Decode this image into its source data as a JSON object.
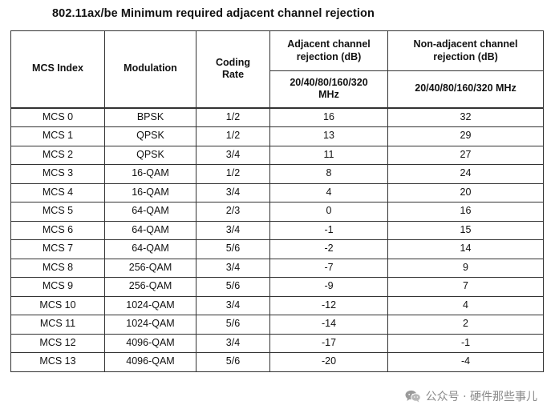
{
  "title": "802.11ax/be Minimum required adjacent channel rejection",
  "table": {
    "headers": {
      "mcs_index": "MCS Index",
      "modulation": "Modulation",
      "coding_rate_line1": "Coding",
      "coding_rate_line2": "Rate",
      "adjacent_line1": "Adjacent channel",
      "adjacent_line2": "rejection (dB)",
      "adjacent_bw_line1": "20/40/80/160/320",
      "adjacent_bw_line2": "MHz",
      "nonadjacent_line1": "Non-adjacent channel",
      "nonadjacent_line2": "rejection (dB)",
      "nonadjacent_bw": "20/40/80/160/320 MHz"
    },
    "rows": [
      [
        "MCS 0",
        "BPSK",
        "1/2",
        "16",
        "32"
      ],
      [
        "MCS 1",
        "QPSK",
        "1/2",
        "13",
        "29"
      ],
      [
        "MCS 2",
        "QPSK",
        "3/4",
        "11",
        "27"
      ],
      [
        "MCS 3",
        "16-QAM",
        "1/2",
        "8",
        "24"
      ],
      [
        "MCS 4",
        "16-QAM",
        "3/4",
        "4",
        "20"
      ],
      [
        "MCS 5",
        "64-QAM",
        "2/3",
        "0",
        "16"
      ],
      [
        "MCS 6",
        "64-QAM",
        "3/4",
        "-1",
        "15"
      ],
      [
        "MCS 7",
        "64-QAM",
        "5/6",
        "-2",
        "14"
      ],
      [
        "MCS 8",
        "256-QAM",
        "3/4",
        "-7",
        "9"
      ],
      [
        "MCS 9",
        "256-QAM",
        "5/6",
        "-9",
        "7"
      ],
      [
        "MCS 10",
        "1024-QAM",
        "3/4",
        "-12",
        "4"
      ],
      [
        "MCS 11",
        "1024-QAM",
        "5/6",
        "-14",
        "2"
      ],
      [
        "MCS 12",
        "4096-QAM",
        "3/4",
        "-17",
        "-1"
      ],
      [
        "MCS 13",
        "4096-QAM",
        "5/6",
        "-20",
        "-4"
      ]
    ]
  },
  "watermark": {
    "icon": "wechat-icon",
    "text": "公众号 · 硬件那些事儿"
  },
  "colors": {
    "text": "#111111",
    "border": "#333333",
    "watermark": "#8a8a8a"
  }
}
